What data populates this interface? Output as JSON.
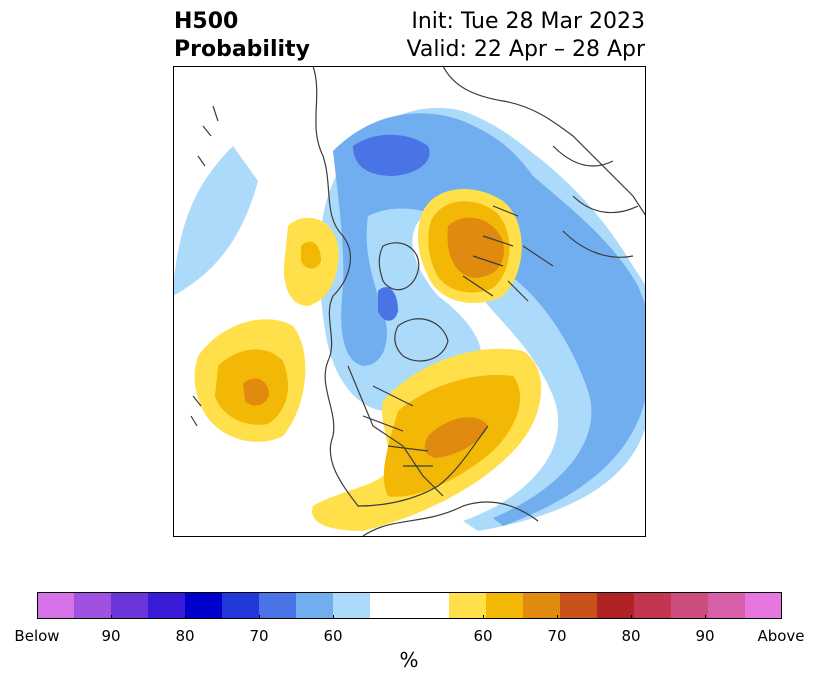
{
  "header": {
    "variable": "H500",
    "product": "Probability",
    "init": "Init: Tue 28 Mar 2023",
    "valid": "Valid: 22 Apr – 28 Apr"
  },
  "colorbar": {
    "unit": "%",
    "below_colors": [
      "#d572e8",
      "#9f52e2",
      "#6a36da",
      "#3a1bd8",
      "#0000cd",
      "#2338d9",
      "#4a73e6",
      "#71aef0",
      "#acdafa"
    ],
    "neutral_color": "#ffffff",
    "above_colors": [
      "#ffe04a",
      "#f3b705",
      "#e08a0f",
      "#c9521b",
      "#b12224",
      "#c2364f",
      "#cd4e7e",
      "#d65fa8",
      "#e776e0"
    ],
    "tick_labels": [
      "Below",
      "90",
      "80",
      "70",
      "60",
      "60",
      "70",
      "80",
      "90",
      "Above"
    ]
  }
}
